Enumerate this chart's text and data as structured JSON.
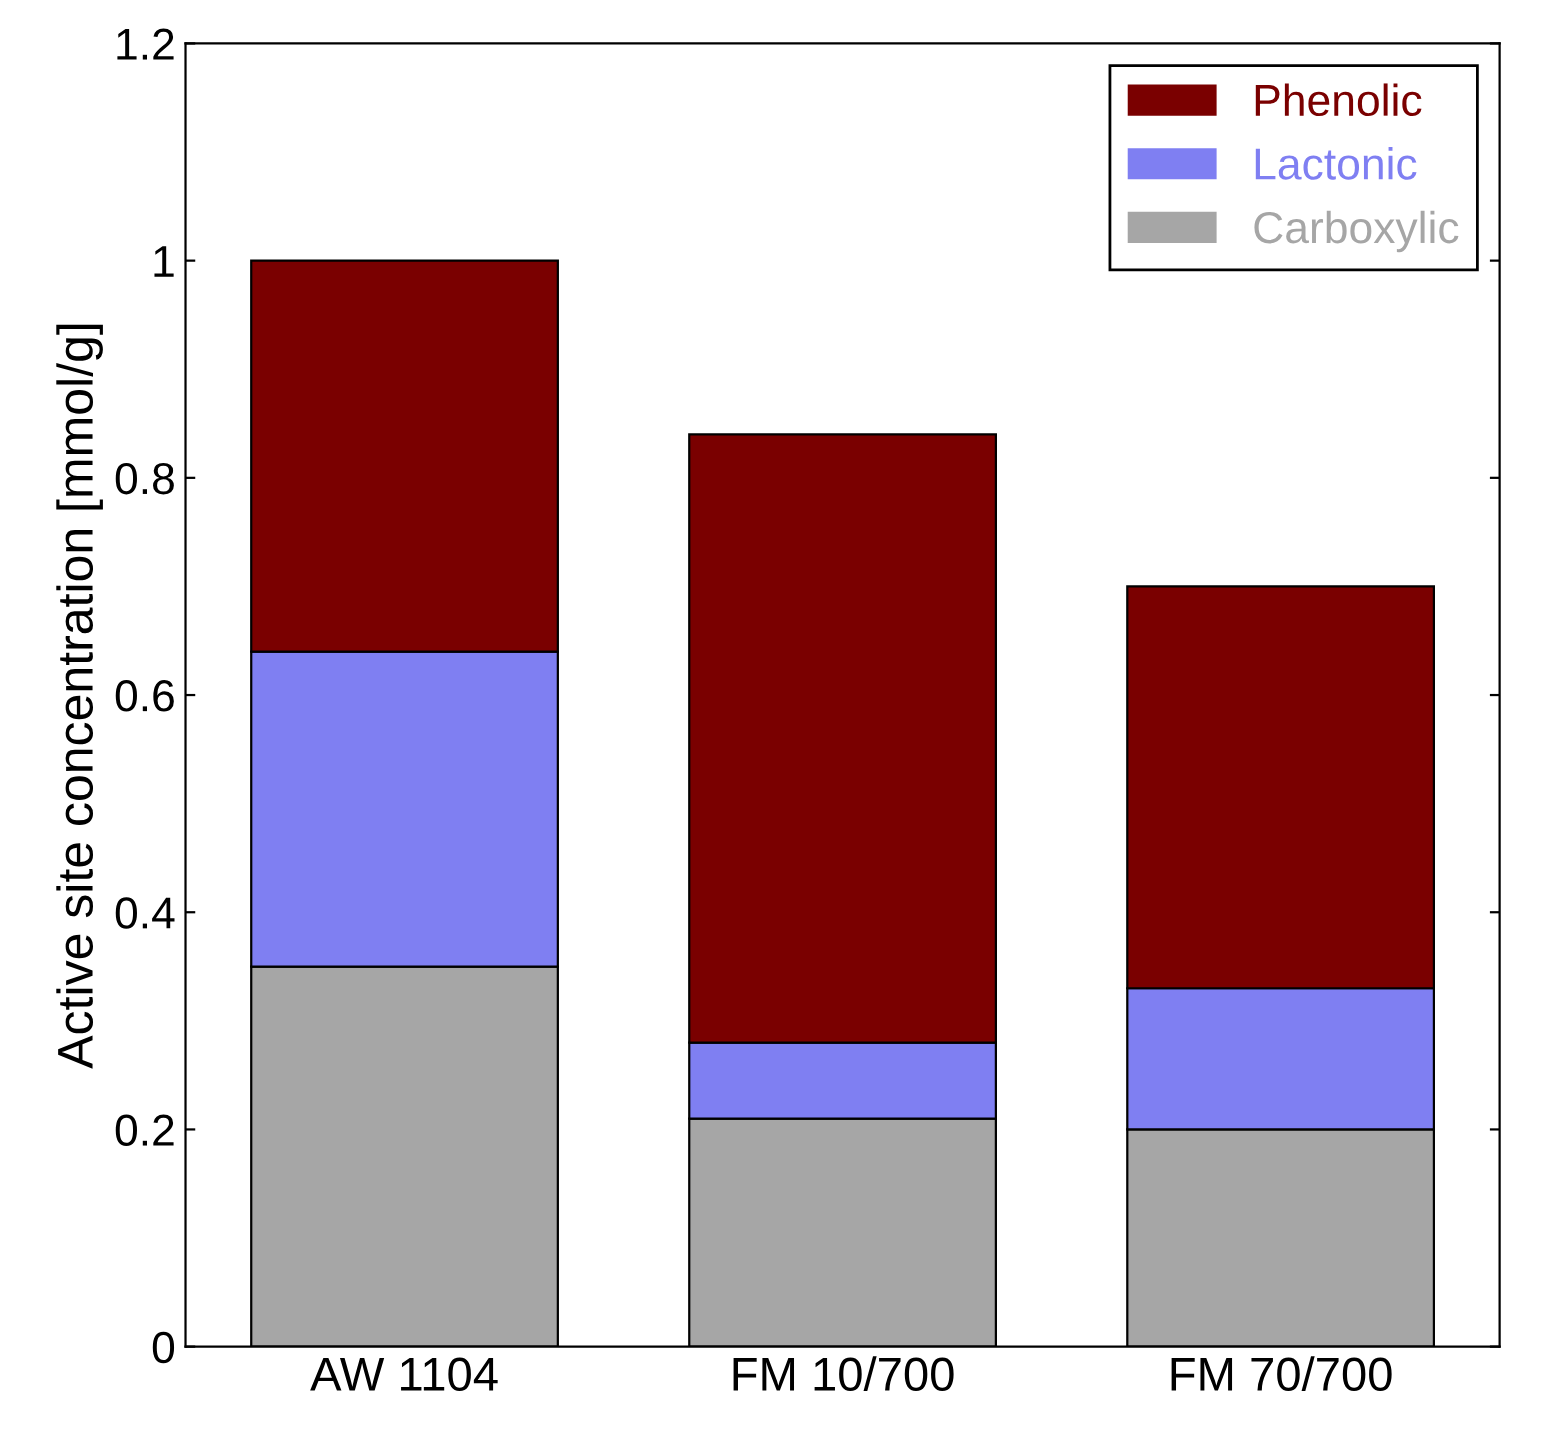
{
  "chart_data": {
    "type": "bar",
    "stacked": true,
    "ylabel": "Active site concentration [mmol/g]",
    "categories": [
      "AW 1104",
      "FM 10/700",
      "FM 70/700"
    ],
    "series": [
      {
        "name": "Carboxylic",
        "color": "#a6a6a6",
        "values": [
          0.35,
          0.21,
          0.2
        ]
      },
      {
        "name": "Lactonic",
        "color": "#7f7ff2",
        "values": [
          0.29,
          0.07,
          0.13
        ]
      },
      {
        "name": "Phenolic",
        "color": "#7a0000",
        "values": [
          0.36,
          0.56,
          0.37
        ]
      }
    ],
    "ylim": [
      0,
      1.2
    ],
    "yticks": [
      0,
      0.2,
      0.4,
      0.6,
      0.8,
      1,
      1.2
    ],
    "grid": false,
    "legend": "top right"
  }
}
